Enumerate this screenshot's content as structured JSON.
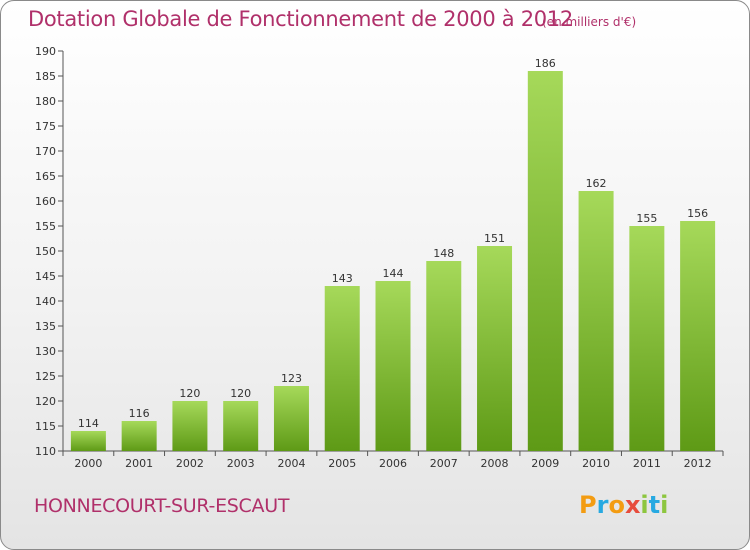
{
  "title": "Dotation Globale de Fonctionnement de 2000 à 2012",
  "unit_note": "(en milliers d'€)",
  "commune": "HONNECOURT-SUR-ESCAUT",
  "logo": {
    "text": "Proxiti",
    "letters": [
      {
        "ch": "P",
        "color": "#f39c12"
      },
      {
        "ch": "r",
        "color": "#27a9e1"
      },
      {
        "ch": "o",
        "color": "#f39c12"
      },
      {
        "ch": "x",
        "color": "#e74c3c"
      },
      {
        "ch": "i",
        "color": "#8dc63f"
      },
      {
        "ch": "t",
        "color": "#27a9e1"
      },
      {
        "ch": "i",
        "color": "#8dc63f"
      }
    ]
  },
  "colors": {
    "bar_light": "#a6d95a",
    "bar_dark": "#5e9a16",
    "text_accent": "#b0306a"
  },
  "chart_data": {
    "type": "bar",
    "title": "Dotation Globale de Fonctionnement de 2000 à 2012",
    "categories": [
      "2000",
      "2001",
      "2002",
      "2003",
      "2004",
      "2005",
      "2006",
      "2007",
      "2008",
      "2009",
      "2010",
      "2011",
      "2012"
    ],
    "values": [
      114,
      116,
      120,
      120,
      123,
      143,
      144,
      148,
      151,
      186,
      162,
      155,
      156
    ],
    "ylim": [
      110,
      190
    ],
    "yticks": [
      110,
      115,
      120,
      125,
      130,
      135,
      140,
      145,
      150,
      155,
      160,
      165,
      170,
      175,
      180,
      185,
      190
    ],
    "grid": false,
    "legend": "none"
  }
}
